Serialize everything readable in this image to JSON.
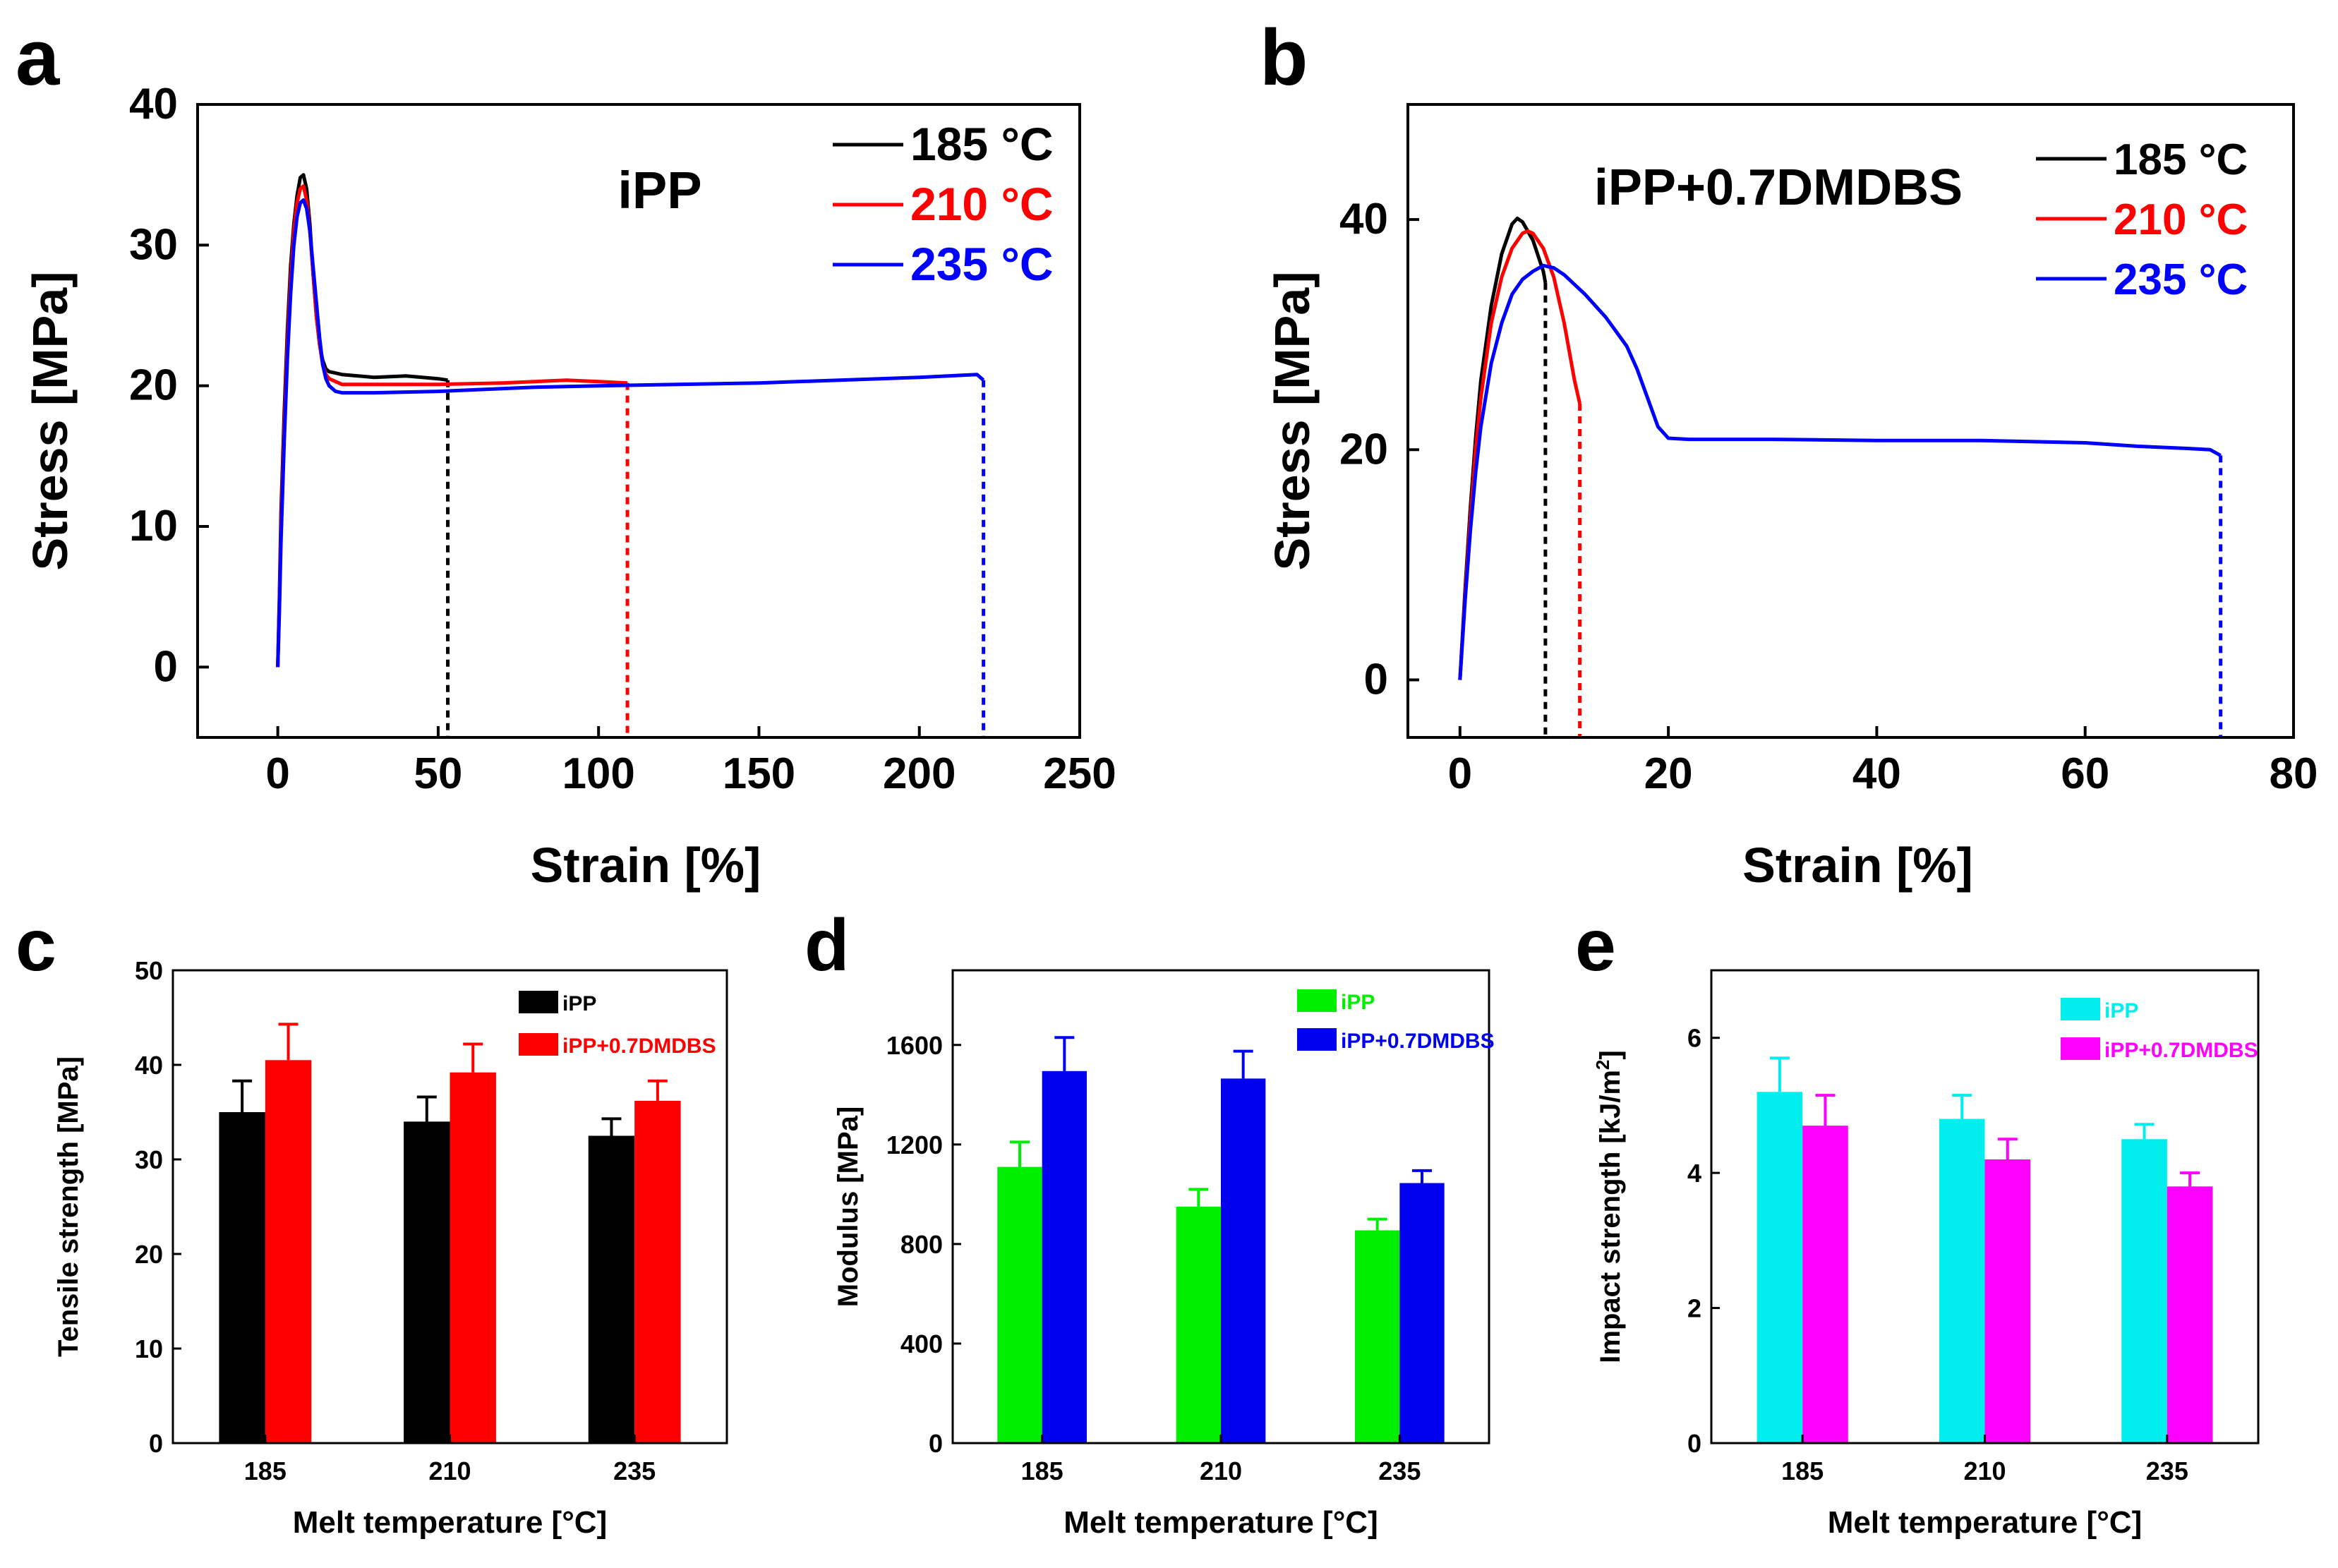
{
  "chart_data": [
    {
      "panel": "a",
      "type": "line",
      "title": "iPP",
      "xlabel": "Strain [%]",
      "ylabel": "Stress [MPa]",
      "xlim": [
        -25,
        250
      ],
      "ylim": [
        -5,
        40
      ],
      "xticks": [
        0,
        50,
        100,
        150,
        200,
        250
      ],
      "yticks": [
        0,
        10,
        20,
        30,
        40
      ],
      "legend_position": "top-right",
      "series": [
        {
          "name": "185 °C",
          "color": "#000000",
          "break_strain": 53,
          "x": [
            0,
            0.5,
            1,
            2,
            3,
            4,
            5,
            6,
            7,
            8,
            9,
            10,
            11,
            12,
            13,
            14,
            15,
            16,
            18,
            20,
            25,
            30,
            40,
            50,
            53
          ],
          "y": [
            0,
            5,
            11,
            18,
            24,
            28.5,
            31.5,
            33.5,
            34.8,
            35.0,
            34.0,
            31.5,
            28.0,
            25.0,
            23.0,
            21.8,
            21.2,
            21.0,
            20.9,
            20.8,
            20.7,
            20.6,
            20.7,
            20.5,
            20.4
          ]
        },
        {
          "name": "210 °C",
          "color": "#ff0000",
          "break_strain": 109,
          "x": [
            0,
            0.5,
            1,
            2,
            3,
            4,
            5,
            6,
            7,
            8,
            9,
            10,
            11,
            12,
            13,
            14,
            15,
            16,
            18,
            20,
            30,
            50,
            70,
            90,
            100,
            109
          ],
          "y": [
            0,
            4.5,
            10,
            17,
            23,
            27.5,
            31,
            33,
            34,
            34.2,
            33.2,
            31,
            28,
            25,
            23,
            21.5,
            20.8,
            20.5,
            20.3,
            20.1,
            20.1,
            20.1,
            20.2,
            20.4,
            20.3,
            20.2
          ]
        },
        {
          "name": "235 °C",
          "color": "#0000ff",
          "break_strain": 220,
          "x": [
            0,
            0.5,
            1,
            2,
            3,
            4,
            5,
            6,
            7,
            8,
            9,
            10,
            11,
            12,
            13,
            14,
            15,
            16,
            18,
            20,
            30,
            50,
            80,
            100,
            150,
            200,
            218,
            220
          ],
          "y": [
            0,
            4,
            9,
            16,
            22,
            26.5,
            30,
            32,
            33,
            33.2,
            32.6,
            31,
            28.5,
            26,
            23.5,
            21.5,
            20.5,
            20,
            19.6,
            19.5,
            19.5,
            19.6,
            19.9,
            20.0,
            20.2,
            20.6,
            20.8,
            20.4
          ]
        }
      ]
    },
    {
      "panel": "b",
      "type": "line",
      "title": "iPP+0.7DMDBS",
      "xlabel": "Strain [%]",
      "ylabel": "Stress [MPa]",
      "xlim": [
        -5,
        80
      ],
      "ylim": [
        -5,
        50
      ],
      "xticks": [
        0,
        20,
        40,
        60,
        80
      ],
      "yticks": [
        0,
        20,
        40
      ],
      "legend_position": "top-right",
      "series": [
        {
          "name": "185 °C",
          "color": "#000000",
          "break_strain": 8.2,
          "x": [
            0,
            0.5,
            1,
            1.5,
            2,
            3,
            4,
            5,
            5.5,
            6,
            7,
            8,
            8.2
          ],
          "y": [
            0,
            8,
            15,
            21,
            26,
            32.5,
            37,
            39.6,
            40.1,
            39.8,
            38.2,
            35.5,
            34.5
          ]
        },
        {
          "name": "210 °C",
          "color": "#ff0000",
          "break_strain": 11.5,
          "x": [
            0,
            0.5,
            1,
            1.5,
            2,
            3,
            4,
            5,
            6,
            6.5,
            7,
            8,
            9,
            10,
            11,
            11.5
          ],
          "y": [
            0,
            7.5,
            14,
            20,
            24.5,
            31,
            35,
            37.5,
            38.8,
            39,
            38.8,
            37.5,
            35,
            31,
            26,
            24
          ]
        },
        {
          "name": "235 °C",
          "color": "#0000ff",
          "break_strain": 73,
          "x": [
            0,
            0.5,
            1,
            1.5,
            2,
            3,
            4,
            5,
            6,
            7,
            8,
            9,
            10,
            12,
            14,
            16,
            17,
            18,
            19,
            20,
            22,
            30,
            40,
            50,
            60,
            65,
            70,
            72,
            73
          ],
          "y": [
            0,
            7,
            13,
            18,
            22,
            27.5,
            31,
            33.5,
            34.8,
            35.5,
            36,
            35.8,
            35.2,
            33.5,
            31.5,
            29,
            27,
            24.5,
            22,
            21,
            20.9,
            20.9,
            20.8,
            20.8,
            20.6,
            20.3,
            20.1,
            20.0,
            19.5
          ]
        }
      ]
    },
    {
      "panel": "c",
      "type": "bar",
      "xlabel": "Melt temperature [°C]",
      "ylabel": "Tensile strength [MPa]",
      "categories": [
        "185",
        "210",
        "235"
      ],
      "ylim": [
        0,
        50
      ],
      "yticks": [
        0,
        10,
        20,
        30,
        40,
        50
      ],
      "legend_position": "top-right",
      "series": [
        {
          "name": "iPP",
          "color": "#000000",
          "values": [
            35,
            34,
            32.5
          ],
          "errors": [
            3.3,
            2.6,
            1.8
          ]
        },
        {
          "name": "iPP+0.7DMDBS",
          "color": "#ff0000",
          "values": [
            40.5,
            39.2,
            36.2
          ],
          "errors": [
            3.8,
            3.0,
            2.1
          ]
        }
      ]
    },
    {
      "panel": "d",
      "type": "bar",
      "xlabel": "Melt temperature [°C]",
      "ylabel": "Modulus [MPa]",
      "categories": [
        "185",
        "210",
        "235"
      ],
      "ylim": [
        0,
        1900
      ],
      "yticks": [
        0,
        400,
        800,
        1200,
        1600
      ],
      "legend_position": "top-right",
      "series": [
        {
          "name": "iPP",
          "color": "#00ee00",
          "values": [
            1110,
            950,
            855
          ],
          "errors": [
            100,
            70,
            45
          ]
        },
        {
          "name": "iPP+0.7DMDBS",
          "color": "#0000ee",
          "values": [
            1495,
            1465,
            1045
          ],
          "errors": [
            135,
            110,
            50
          ]
        }
      ]
    },
    {
      "panel": "e",
      "type": "bar",
      "xlabel": "Melt temperature [°C]",
      "ylabel": "Impact strength [kJ/m",
      "ylabel_sup": "2",
      "ylabel_end": "]",
      "categories": [
        "185",
        "210",
        "235"
      ],
      "ylim": [
        0,
        7
      ],
      "yticks": [
        0,
        2,
        4,
        6
      ],
      "legend_position": "top-right",
      "series": [
        {
          "name": "iPP",
          "color": "#00eeee",
          "values": [
            5.2,
            4.8,
            4.5
          ],
          "errors": [
            0.5,
            0.35,
            0.22
          ]
        },
        {
          "name": "iPP+0.7DMDBS",
          "color": "#ff00ff",
          "values": [
            4.7,
            4.2,
            3.8
          ],
          "errors": [
            0.45,
            0.3,
            0.2
          ]
        }
      ]
    }
  ],
  "panel_letters": [
    "a",
    "b",
    "c",
    "d",
    "e"
  ]
}
